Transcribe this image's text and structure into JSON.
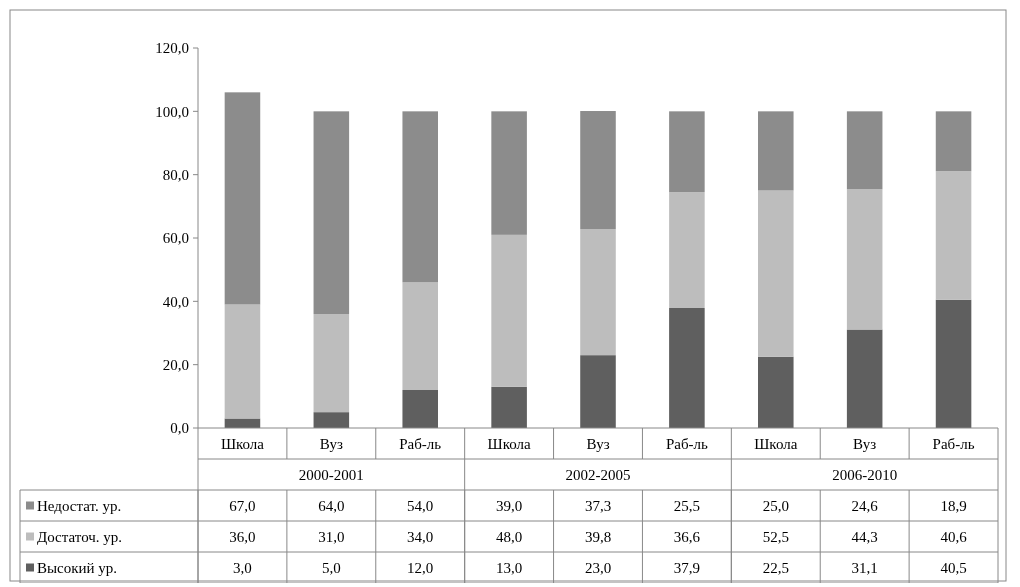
{
  "chart_data": {
    "type": "bar",
    "stacked": true,
    "legend": "bottom left",
    "categories": [
      "Школа",
      "Вуз",
      "Раб-ль",
      "Школа",
      "Вуз",
      "Раб-ль",
      "Школа",
      "Вуз",
      "Раб-ль"
    ],
    "annotations": [
      "2000-2001",
      "2002-2005",
      "2006-2010"
    ],
    "ylim": [
      0,
      120
    ],
    "yticks": [
      {
        "value": 0,
        "label": "0,0"
      },
      {
        "value": 20,
        "label": "20,0"
      },
      {
        "value": 40,
        "label": "40,0"
      },
      {
        "value": 60,
        "label": "60,0"
      },
      {
        "value": 80,
        "label": "80,0"
      },
      {
        "value": 100,
        "label": "100,0"
      },
      {
        "value": 120,
        "label": "120,0"
      }
    ],
    "series": [
      {
        "name": "Высокий ур.",
        "color": "#5f5f5f",
        "values": [
          3,
          5,
          12,
          13,
          23,
          37.9,
          22.5,
          31.1,
          40.5
        ],
        "value_labels": [
          "3,0",
          "5,0",
          "12,0",
          "13,0",
          "23,0",
          "37,9",
          "22,5",
          "31,1",
          "40,5"
        ]
      },
      {
        "name": "Достаточ. ур.",
        "color": "#bdbdbd",
        "values": [
          36,
          31,
          34,
          48,
          39.8,
          36.6,
          52.5,
          44.3,
          40.6
        ],
        "value_labels": [
          "36,0",
          "31,0",
          "34,0",
          "48,0",
          "39,8",
          "36,6",
          "52,5",
          "44,3",
          "40,6"
        ]
      },
      {
        "name": "Недостат. ур.",
        "color": "#8c8c8c",
        "values": [
          67,
          64,
          54,
          39,
          37.3,
          25.5,
          25,
          24.6,
          18.9
        ],
        "value_labels": [
          "67,0",
          "64,0",
          "54,0",
          "39,0",
          "37,3",
          "25,5",
          "25,0",
          "24,6",
          "18,9"
        ]
      }
    ]
  }
}
